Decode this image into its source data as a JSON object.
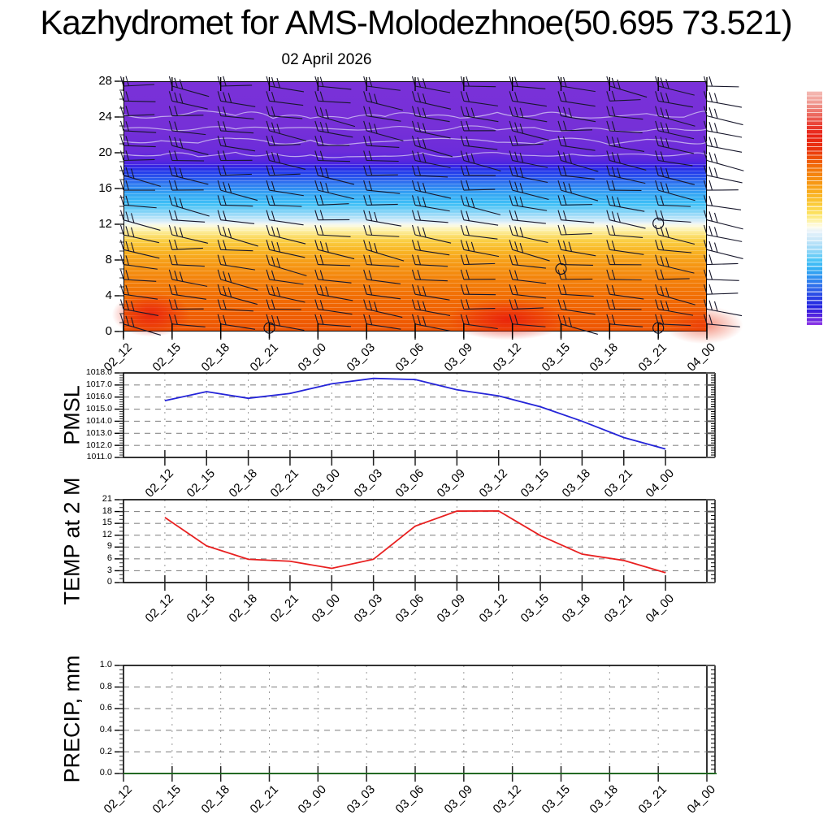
{
  "page": {
    "title": "Kazhydromet for AMS-Molodezhnoe(50.695 73.521)",
    "subtitle": "02 April 2026"
  },
  "x_labels": [
    "02_12",
    "02_15",
    "02_18",
    "02_21",
    "03_00",
    "03_03",
    "03_06",
    "03_09",
    "03_12",
    "03_15",
    "03_18",
    "03_21",
    "04_00"
  ],
  "chart_data": {
    "type": "meteogram",
    "station": "AMS-Molodezhnoe",
    "coordinates": "50.695 73.521",
    "date": "02 April 2026",
    "panels": [
      {
        "id": "contour",
        "type": "heatmap",
        "description": "vertical cross-section of temperature with wind barbs",
        "ylim": [
          0,
          28
        ],
        "y_ticks": [
          0,
          4,
          8,
          12,
          16,
          20,
          24,
          28
        ],
        "x_categories": [
          "02_12",
          "02_15",
          "02_18",
          "02_21",
          "03_00",
          "03_03",
          "03_06",
          "03_09",
          "03_12",
          "03_15",
          "03_18",
          "03_21",
          "04_00"
        ],
        "wind_barbs": {
          "columns": 13,
          "rows": 17
        },
        "calm_circles": [
          {
            "x_index": 9,
            "y": 7.0
          },
          {
            "x_index": 11,
            "y": 12.1
          },
          {
            "x_index": 3,
            "y": 0.4
          },
          {
            "x_index": 11,
            "y": 0.4
          }
        ],
        "bands_top_to_bottom": [
          [
            0,
            "#7a31d8"
          ],
          [
            18,
            "#7630d7"
          ],
          [
            28,
            "#6c2cda"
          ],
          [
            32,
            "#5526de"
          ],
          [
            34,
            "#3424e4"
          ],
          [
            35.5,
            "#2434ea"
          ],
          [
            38,
            "#2850ec"
          ],
          [
            41,
            "#2e79f0"
          ],
          [
            45,
            "#34a6f4"
          ],
          [
            49,
            "#3fc0f6"
          ],
          [
            52,
            "#7ed2f7"
          ],
          [
            54.5,
            "#b4e2f8"
          ],
          [
            56.5,
            "#e2f0f8"
          ],
          [
            57.5,
            "#fafae8"
          ],
          [
            59,
            "#fdf5bb"
          ],
          [
            61.5,
            "#fce277"
          ],
          [
            64,
            "#facd42"
          ],
          [
            68,
            "#f8b424"
          ],
          [
            73,
            "#f69a15"
          ],
          [
            79,
            "#f3830b"
          ],
          [
            87,
            "#f16c04"
          ],
          [
            95,
            "#ef5c02"
          ],
          [
            100,
            "#ee5502"
          ]
        ],
        "colorbar_stops_top_to_bottom": [
          [
            0,
            "#f5bcb6"
          ],
          [
            5,
            "#f09a92"
          ],
          [
            10,
            "#ec6a60"
          ],
          [
            15,
            "#e93a2e"
          ],
          [
            19,
            "#e92214"
          ],
          [
            25,
            "#ea330e"
          ],
          [
            29,
            "#ee5407"
          ],
          [
            33,
            "#f37409"
          ],
          [
            38,
            "#f69111"
          ],
          [
            43,
            "#f9ad1e"
          ],
          [
            48,
            "#fbc937"
          ],
          [
            52,
            "#fce15e"
          ],
          [
            55,
            "#fdf09b"
          ],
          [
            58,
            "#fefce8"
          ],
          [
            60,
            "#e6f2fa"
          ],
          [
            64,
            "#c4e5f8"
          ],
          [
            68,
            "#93d6f7"
          ],
          [
            72,
            "#4ec7f7"
          ],
          [
            76,
            "#33aff4"
          ],
          [
            80,
            "#2f8df0"
          ],
          [
            84,
            "#2f68ea"
          ],
          [
            88,
            "#2b43e5"
          ],
          [
            92,
            "#2425e1"
          ],
          [
            95,
            "#461fdd"
          ],
          [
            100,
            "#8d35e5"
          ]
        ]
      },
      {
        "id": "pmsl",
        "type": "line",
        "label": "PMSL",
        "color": "#2424d8",
        "ylim": [
          1011,
          1018
        ],
        "ystep": 1,
        "y_fmt": "fixed1",
        "values": [
          1015.7,
          1016.45,
          1015.9,
          1016.3,
          1017.1,
          1017.55,
          1017.45,
          1016.6,
          1016.1,
          1015.2,
          1014.0,
          1012.65,
          1011.7
        ]
      },
      {
        "id": "temp",
        "type": "line",
        "label": "TEMP at 2 M",
        "color": "#e82020",
        "ylim": [
          0,
          21
        ],
        "ystep": 3,
        "y_fmt": "int",
        "values": [
          16.5,
          9.3,
          5.9,
          5.4,
          3.6,
          5.9,
          14.3,
          18.1,
          18.15,
          11.9,
          7.2,
          5.6,
          2.5
        ]
      },
      {
        "id": "precip",
        "type": "line",
        "label": "PRECIP, mm",
        "color": "#1a6b1a",
        "ylim": [
          0,
          1
        ],
        "ystep": 0.2,
        "y_fmt": "fixed1",
        "values": [
          0,
          0,
          0,
          0,
          0,
          0,
          0,
          0,
          0,
          0,
          0,
          0,
          0
        ]
      }
    ]
  }
}
